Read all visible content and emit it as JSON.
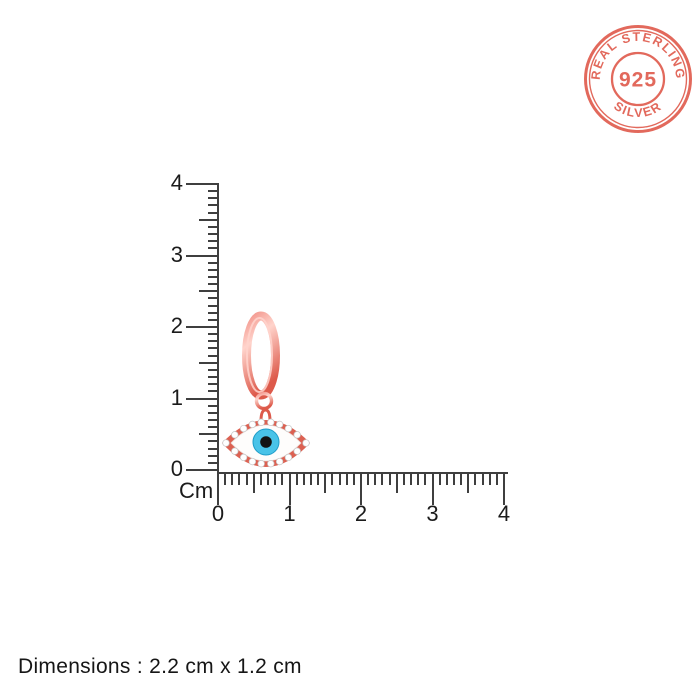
{
  "page": {
    "background": "#ffffff"
  },
  "stamp": {
    "top_text": "REAL STERLING",
    "center_text": "925",
    "bottom_text": "SILVER"
  },
  "ruler": {
    "unit_label": "Cm",
    "min": 0,
    "max": 4,
    "minor_step": 0.1,
    "vertical": {
      "labels": [
        "0",
        "1",
        "2",
        "3",
        "4"
      ]
    },
    "horizontal": {
      "labels": [
        "0",
        "1",
        "2",
        "3",
        "4"
      ]
    }
  },
  "product": {
    "name": "rose-gold-evil-eye-hoop-earring-with-crystals"
  },
  "caption": {
    "text": "Dimensions : 2.2 cm x 1.2 cm"
  },
  "colors": {
    "stamp": "#e2695c",
    "ruler_line": "#3f3f3f",
    "ruler_label": "#1b1b1b",
    "caption_text": "#161616",
    "metal_light": "#ffd4cc",
    "metal_mid": "#f2948a",
    "metal_dark": "#dd5a4b",
    "eye_border": "#dc6152",
    "eye_white": "#fefdfc",
    "iris_blue": "#49c3e8",
    "iris_ring": "#1f9dc9",
    "pupil": "#131313",
    "crystal": "#ffffff",
    "crystal_edge": "#c6c6c6",
    "background": "#ffffff"
  }
}
